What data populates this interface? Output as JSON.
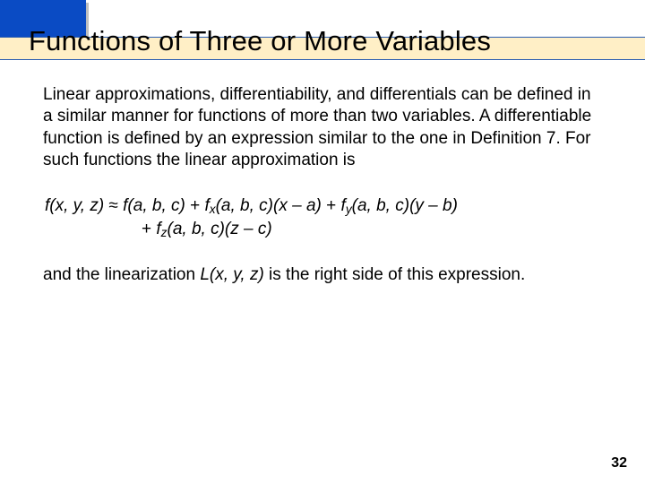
{
  "colors": {
    "blue_box": "#0a4bc4",
    "blue_box_shadow": "#bfbfbf",
    "cream_bar": "#ffefc6",
    "rule_line": "#2a5db0",
    "background": "#ffffff",
    "text": "#000000"
  },
  "typography": {
    "title_fontsize": 31,
    "body_fontsize": 19,
    "pagenum_fontsize": 16,
    "font_family": "Arial"
  },
  "title": "Functions of Three or More Variables",
  "paragraph1": "Linear approximations, differentiability, and differentials can be defined in a similar manner for functions of more than two variables. A differentiable function is defined by an expression similar to the one in Definition 7. For such functions the linear approximation is",
  "formula": {
    "lhs_f": "f",
    "args_xyz": "(x, y, z)",
    "approx": " ≈ ",
    "f_abc": "(a, b, c)",
    "plus": " + ",
    "fx": "f",
    "fx_sub": "x",
    "term_xa": "(x – a)",
    "fy": "f",
    "fy_sub": "y",
    "term_yb": "(y – b)",
    "fz": "f",
    "fz_sub": "z",
    "term_zc": "(z – c)"
  },
  "paragraph2_pre": "and the linearization ",
  "paragraph2_L": "L",
  "paragraph2_Largs": "(x, y, z)",
  "paragraph2_post": " is the right side of this expression.",
  "page_number": "32"
}
